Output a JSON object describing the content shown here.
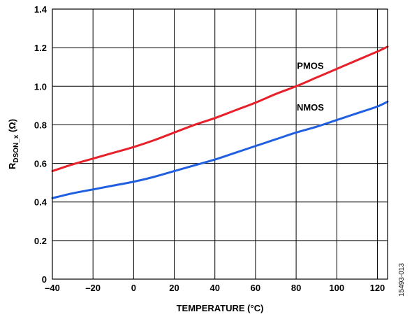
{
  "chart_data": {
    "type": "line",
    "xlabel": "TEMPERATURE (°C)",
    "ylabel_main": "R",
    "ylabel_sub": "DSON_x",
    "ylabel_unit": " (Ω)",
    "xlim": [
      -40,
      125
    ],
    "ylim": [
      0,
      1.4
    ],
    "x_ticks": [
      -40,
      -20,
      0,
      20,
      40,
      60,
      80,
      100,
      120
    ],
    "x_tick_labels": [
      "–40",
      "–20",
      "0",
      "20",
      "40",
      "60",
      "80",
      "100",
      "120"
    ],
    "y_ticks": [
      0,
      0.2,
      0.4,
      0.6,
      0.8,
      1.0,
      1.2,
      1.4
    ],
    "y_tick_labels": [
      "0",
      "0.2",
      "0.4",
      "0.6",
      "0.8",
      "1.0",
      "1.2",
      "1.4"
    ],
    "grid": true,
    "series": [
      {
        "name": "PMOS",
        "color": "#e8202a",
        "x": [
          -40,
          -30,
          -20,
          -10,
          0,
          10,
          20,
          30,
          40,
          50,
          60,
          70,
          80,
          90,
          100,
          110,
          120,
          125
        ],
        "values": [
          0.56,
          0.595,
          0.625,
          0.655,
          0.685,
          0.72,
          0.76,
          0.8,
          0.835,
          0.875,
          0.915,
          0.96,
          1.0,
          1.045,
          1.09,
          1.135,
          1.18,
          1.205
        ]
      },
      {
        "name": "NMOS",
        "color": "#1f5fe0",
        "x": [
          -40,
          -30,
          -20,
          -10,
          0,
          10,
          20,
          30,
          40,
          50,
          60,
          70,
          80,
          90,
          100,
          110,
          120,
          125
        ],
        "values": [
          0.42,
          0.445,
          0.465,
          0.485,
          0.505,
          0.53,
          0.56,
          0.59,
          0.62,
          0.655,
          0.69,
          0.725,
          0.76,
          0.79,
          0.825,
          0.86,
          0.895,
          0.92
        ]
      }
    ]
  },
  "figure_id": "15493-013"
}
